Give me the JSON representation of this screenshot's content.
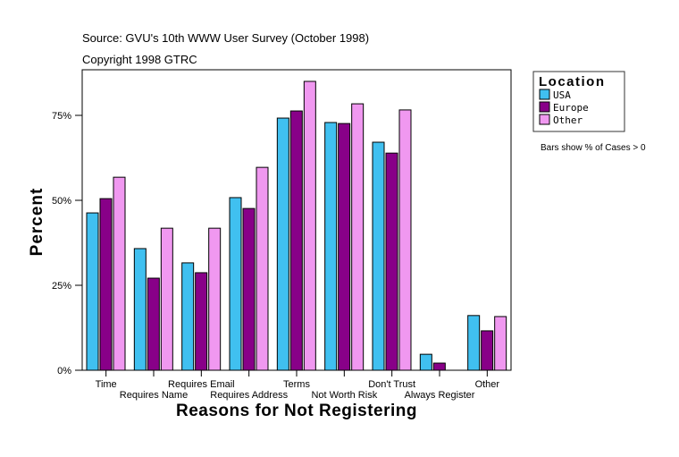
{
  "header": {
    "source": "Source: GVU's 10th WWW User Survey (October 1998)",
    "copyright": "Copyright 1998 GTRC"
  },
  "note": "Bars show % of Cases > 0",
  "chart_data": {
    "type": "bar",
    "xlabel": "Reasons for Not Registering",
    "ylabel": "Percent",
    "ylim": [
      0,
      88.4
    ],
    "yticks": [
      0,
      25,
      50,
      75
    ],
    "ytick_labels": [
      "0%",
      "25%",
      "50%",
      "75%"
    ],
    "grid": false,
    "legend": {
      "title": "Location",
      "placement": "right"
    },
    "categories": [
      "Time",
      "Requires Name",
      "Requires Email",
      "Requires Address",
      "Terms",
      "Not Worth Risk",
      "Don't Trust",
      "Always Register",
      "Other"
    ],
    "series": [
      {
        "name": "USA",
        "color": "#40c0f0",
        "values": [
          46.3,
          35.8,
          31.6,
          50.8,
          74.2,
          72.9,
          67.1,
          4.7,
          16.1
        ]
      },
      {
        "name": "Europe",
        "color": "#880088",
        "values": [
          50.5,
          27.1,
          28.7,
          47.6,
          76.3,
          72.6,
          63.9,
          2.1,
          11.6
        ]
      },
      {
        "name": "Other",
        "color": "#f098f0",
        "values": [
          56.8,
          41.8,
          41.8,
          59.7,
          85.0,
          78.4,
          76.6,
          0,
          15.8
        ]
      }
    ]
  }
}
